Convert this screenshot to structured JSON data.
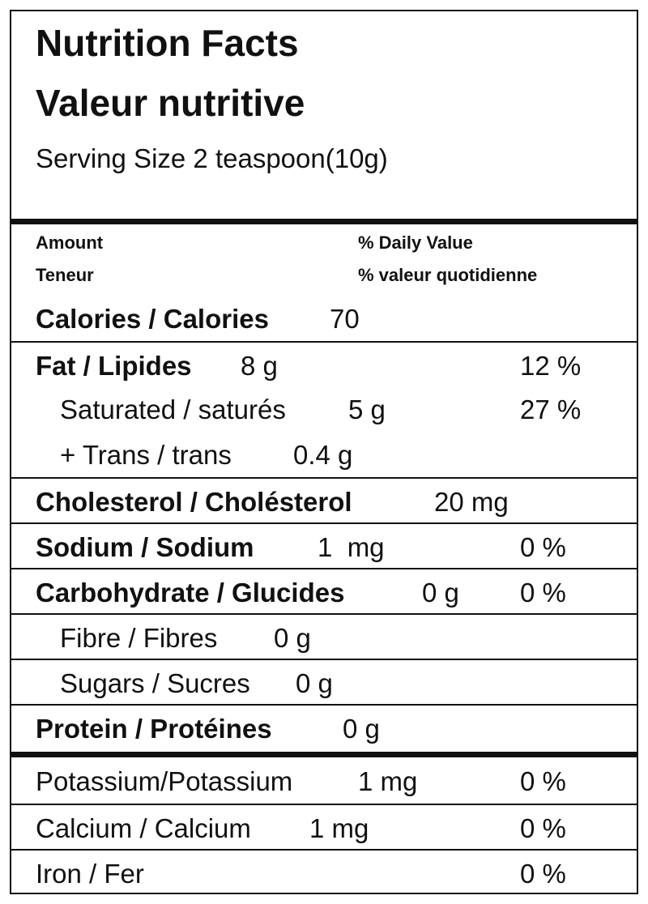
{
  "header": {
    "title_en": "Nutrition Facts",
    "title_fr": "Valeur nutritive",
    "serving": "Serving Size 2 teaspoon(10g)"
  },
  "columns": {
    "amount_en": "Amount",
    "amount_fr": "Teneur",
    "dv_en": "% Daily Value",
    "dv_fr": "% valeur quotidienne"
  },
  "rows": [
    {
      "label": "Calories / Calories",
      "amount": "70",
      "dv": ""
    },
    {
      "label": "Fat / Lipides",
      "amount": "8 g",
      "dv": "12 %"
    },
    {
      "label": "Saturated / saturés",
      "amount": "5 g",
      "dv": "27 %"
    },
    {
      "label": "+ Trans / trans",
      "amount": "0.4 g",
      "dv": ""
    },
    {
      "label": "Cholesterol / Cholésterol",
      "amount": "20 mg",
      "dv": ""
    },
    {
      "label": "Sodium / Sodium",
      "amount": "1  mg",
      "dv": "0 %"
    },
    {
      "label": "Carbohydrate / Glucides",
      "amount": "0 g",
      "dv": "0 %"
    },
    {
      "label": "Fibre / Fibres",
      "amount": "0 g",
      "dv": ""
    },
    {
      "label": "Sugars / Sucres",
      "amount": "0 g",
      "dv": ""
    },
    {
      "label": "Protein / Protéines",
      "amount": "0 g",
      "dv": ""
    }
  ],
  "minerals": [
    {
      "label": "Potassium/Potassium",
      "amount": "1 mg",
      "dv": "0 %"
    },
    {
      "label": "Calcium / Calcium",
      "amount": "1 mg",
      "dv": "0 %"
    },
    {
      "label": "Iron / Fer",
      "amount": "",
      "dv": "0 %"
    }
  ]
}
